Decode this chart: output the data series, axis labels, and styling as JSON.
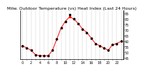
{
  "title": "Milw. Outdoor Temperature (vs) Heat Index (Last 24 Hours)",
  "background_color": "#ffffff",
  "plot_bg_color": "#ffffff",
  "grid_color": "#888888",
  "line1_color": "#ff0000",
  "line2_color": "#000000",
  "x_values": [
    0,
    1,
    2,
    3,
    4,
    5,
    6,
    7,
    8,
    9,
    10,
    11,
    12,
    13,
    14,
    15,
    16,
    17,
    18,
    19,
    20,
    21,
    22,
    23
  ],
  "temp_values": [
    56,
    54,
    52,
    48,
    47,
    47,
    47,
    52,
    62,
    72,
    78,
    82,
    80,
    76,
    71,
    68,
    63,
    58,
    56,
    54,
    52,
    57,
    58,
    60
  ],
  "heat_values": [
    56,
    54,
    52,
    48,
    47,
    47,
    47,
    52,
    62,
    72,
    78,
    84,
    80,
    76,
    71,
    68,
    63,
    58,
    56,
    54,
    52,
    57,
    58,
    60
  ],
  "ylim_min": 44,
  "ylim_max": 88,
  "ytick_positions": [
    45,
    50,
    55,
    60,
    65,
    70,
    75,
    80,
    85
  ],
  "ytick_labels": [
    "45",
    "50",
    "55",
    "60",
    "65",
    "70",
    "75",
    "80",
    "85"
  ],
  "xlim_min": -0.5,
  "xlim_max": 23.5,
  "title_fontsize": 4.5,
  "tick_fontsize": 3.5,
  "marker_size": 1.5,
  "linewidth": 0.7
}
